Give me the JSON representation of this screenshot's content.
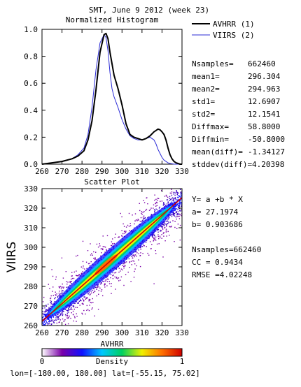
{
  "title": "SMT,  June 9 2012 (week 23)",
  "footer": "lon=[-180.00, 180.00] lat=[-55.15, 75.02]",
  "colors": {
    "avhrr": "#000000",
    "viirs": "#2b2bd6",
    "fitline": "#d20000"
  },
  "legend": [
    {
      "label": "AVHRR (1)",
      "color": "#000000"
    },
    {
      "label": "VIIRS (2)",
      "color": "#2b2bd6"
    }
  ],
  "stats": [
    {
      "label": "Nsamples=",
      "value": "662460"
    },
    {
      "label": "mean1=",
      "value": "296.304"
    },
    {
      "label": "mean2=",
      "value": "294.963"
    },
    {
      "label": "std1=",
      "value": "12.6907"
    },
    {
      "label": "std2=",
      "value": "12.1541"
    },
    {
      "label": "Diffmax=",
      "value": "58.8000"
    },
    {
      "label": "Diffmin=",
      "value": "-50.8000"
    },
    {
      "label": "mean(diff)=",
      "value": "-1.34127"
    },
    {
      "label": "stddev(diff)=",
      "value": "4.20398"
    }
  ],
  "regression": [
    "Y= a +b * X",
    "a= 27.1974",
    "b= 0.903686",
    "Nsamples=662460",
    "CC = 0.9434",
    "RMSE =4.02248"
  ],
  "colorbar": {
    "label": "Density",
    "min_label": "0",
    "max_label": "1",
    "stops": [
      "#ffffff",
      "#7a00a8",
      "#1010ff",
      "#00c8ff",
      "#00d060",
      "#f0f000",
      "#ff7000",
      "#d00000"
    ]
  },
  "chart_data": [
    {
      "type": "line",
      "title": "Normalized Histogram",
      "xlim": [
        260,
        330
      ],
      "ylim": [
        0,
        1.0
      ],
      "xticks": [
        260,
        270,
        280,
        290,
        300,
        310,
        320,
        330
      ],
      "yticks": [
        "0.0",
        "0.2",
        "0.4",
        "0.6",
        "0.8",
        "1.0"
      ],
      "series": [
        {
          "name": "AVHRR (1)",
          "x": [
            260,
            265,
            270,
            275,
            278,
            281,
            283,
            285,
            287,
            289,
            291,
            292,
            293,
            294,
            296,
            298,
            300,
            302,
            304,
            306,
            308,
            310,
            312,
            314,
            316,
            317,
            318,
            319,
            320,
            321,
            322,
            323,
            324,
            325,
            326,
            327,
            328,
            329,
            330
          ],
          "values": [
            0.0,
            0.01,
            0.02,
            0.04,
            0.06,
            0.1,
            0.18,
            0.32,
            0.55,
            0.83,
            0.96,
            0.97,
            0.93,
            0.83,
            0.66,
            0.56,
            0.44,
            0.3,
            0.22,
            0.2,
            0.19,
            0.18,
            0.19,
            0.21,
            0.24,
            0.25,
            0.26,
            0.255,
            0.24,
            0.22,
            0.18,
            0.12,
            0.07,
            0.04,
            0.02,
            0.01,
            0.005,
            0.0,
            0.0
          ]
        },
        {
          "name": "VIIRS (2)",
          "x": [
            260,
            265,
            270,
            275,
            278,
            281,
            283,
            285,
            287,
            289,
            291,
            292,
            293,
            294,
            295,
            296,
            298,
            300,
            302,
            304,
            306,
            308,
            310,
            312,
            314,
            316,
            317,
            318,
            319,
            320,
            321,
            322,
            323,
            324,
            326,
            328,
            330
          ],
          "values": [
            0.0,
            0.01,
            0.02,
            0.04,
            0.07,
            0.12,
            0.22,
            0.42,
            0.7,
            0.9,
            0.96,
            0.94,
            0.84,
            0.68,
            0.56,
            0.5,
            0.42,
            0.33,
            0.26,
            0.21,
            0.19,
            0.18,
            0.18,
            0.19,
            0.2,
            0.18,
            0.15,
            0.11,
            0.08,
            0.05,
            0.03,
            0.02,
            0.01,
            0.005,
            0.0,
            0.0,
            0.0
          ]
        }
      ]
    },
    {
      "type": "heatmap",
      "title": "Scatter Plot",
      "xlabel": "AVHRR",
      "ylabel": "VIIRS",
      "xlim": [
        260,
        330
      ],
      "ylim": [
        260,
        330
      ],
      "xticks": [
        260,
        270,
        280,
        290,
        300,
        310,
        320,
        330
      ],
      "yticks": [
        260,
        270,
        280,
        290,
        300,
        310,
        320,
        330
      ],
      "fit": {
        "a": 27.1974,
        "b": 0.903686
      }
    }
  ]
}
